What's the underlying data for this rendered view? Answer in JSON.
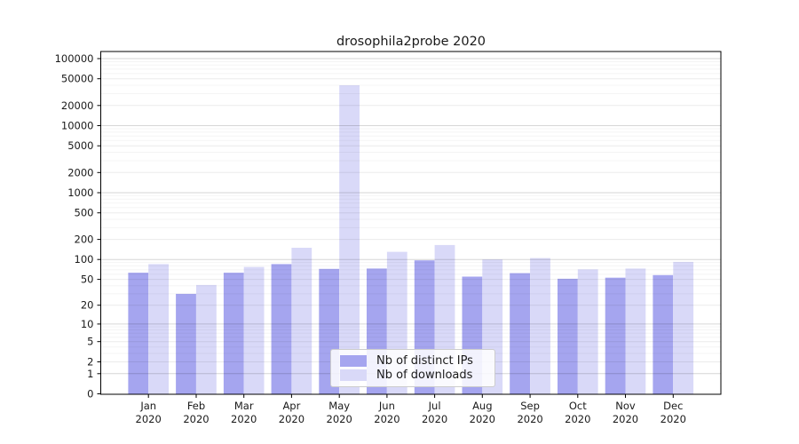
{
  "figure": {
    "background_color": "#ffffff",
    "text_color": "#1a1a1a",
    "axis_color": "#000000"
  },
  "chart_data": {
    "type": "bar",
    "title": "drosophila2probe 2020",
    "categories": [
      "Jan 2020",
      "Feb 2020",
      "Mar 2020",
      "Apr 2020",
      "May 2020",
      "Jun 2020",
      "Jul 2020",
      "Aug 2020",
      "Sep 2020",
      "Oct 2020",
      "Nov 2020",
      "Dec 2020"
    ],
    "series": [
      {
        "name": "Nb of distinct IPs",
        "color": "#a5a5ef",
        "values": [
          63,
          30,
          63,
          85,
          72,
          73,
          97,
          55,
          62,
          51,
          53,
          58
        ]
      },
      {
        "name": "Nb of downloads",
        "color": "#d9d9f8",
        "values": [
          85,
          41,
          77,
          150,
          40000,
          130,
          165,
          100,
          105,
          71,
          73,
          92
        ]
      }
    ],
    "yticks": [
      0,
      1,
      2,
      5,
      10,
      20,
      50,
      100,
      200,
      500,
      1000,
      2000,
      5000,
      10000,
      20000,
      50000,
      100000
    ],
    "scale": "log1p",
    "ylim": [
      0,
      100000
    ],
    "xlabel": "",
    "ylabel": "",
    "grid": "horizontal, drawn over bars; darker lines at powers of ten, faint minor lines at 2-9 multiples",
    "legend_position": "lower center inside plot",
    "grid_decade_color": "rgba(0,0,0,0.16)",
    "grid_labeled_color": "rgba(0,0,0,0.08)",
    "grid_minor_color": "rgba(0,0,0,0.045)"
  }
}
